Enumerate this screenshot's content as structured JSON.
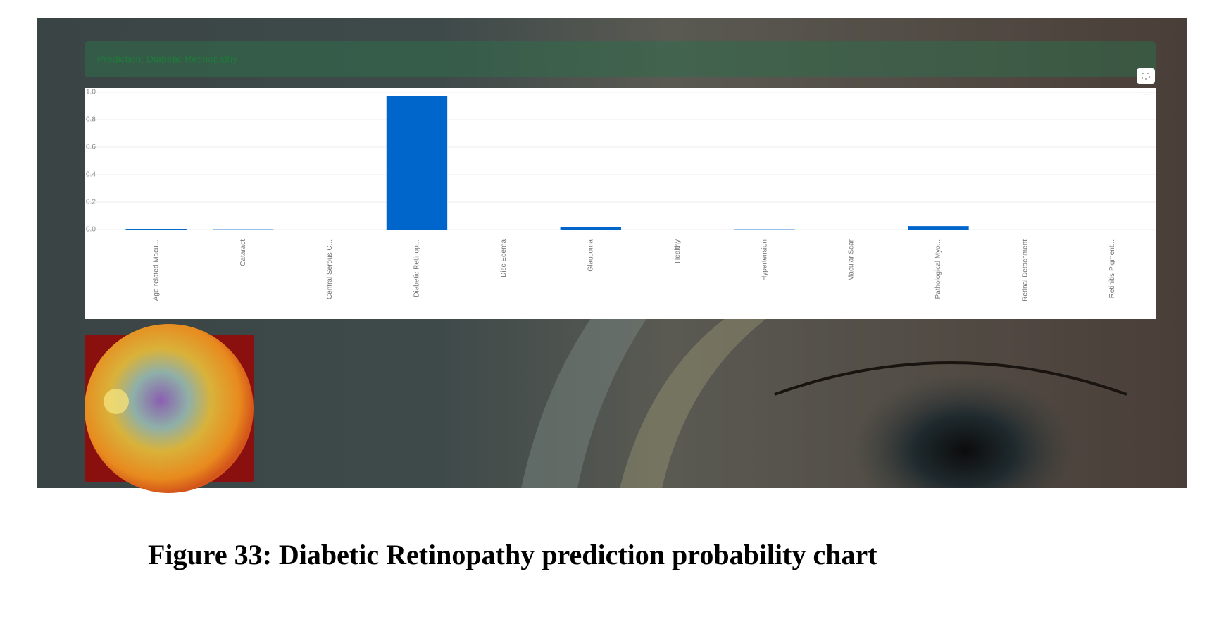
{
  "banner": {
    "text": "Prediction: Diabetic Retinopathy"
  },
  "chart_data": {
    "type": "bar",
    "categories": [
      "Age-related Macu...",
      "Cataract",
      "Central Serous C...",
      "Diabetic Retinop...",
      "Disc Edema",
      "Glaucoma",
      "Healthy",
      "Hypertension",
      "Macular Scar",
      "Pathological Myo...",
      "Retinal Detachment",
      "Retinitis Pigment..."
    ],
    "values": [
      0.005,
      0.002,
      0,
      0.97,
      0,
      0.02,
      0,
      0.002,
      0,
      0.025,
      0,
      0
    ],
    "color": "#0066cc",
    "ylim": [
      0,
      1
    ],
    "yticks": [
      {
        "value": 0,
        "label": "0.0"
      },
      0.2,
      0.4,
      0.6,
      0.8,
      {
        "value": 1,
        "label": "1.0"
      }
    ],
    "grid": true
  },
  "caption": "Figure 33: Diabetic Retinopathy prediction probability chart"
}
